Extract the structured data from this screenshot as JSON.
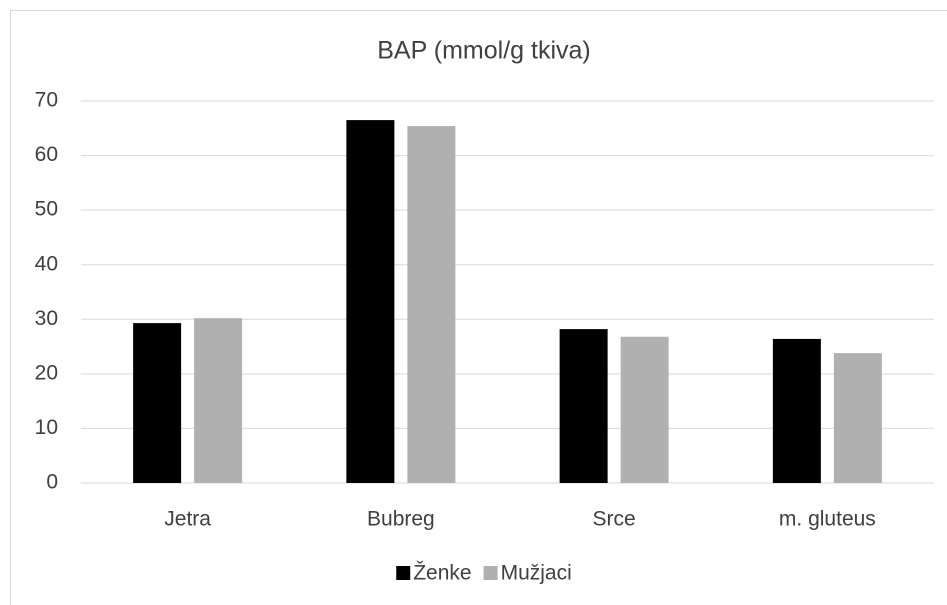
{
  "chart_data": {
    "type": "bar",
    "title": "BAP (mmol/g tkiva)",
    "categories": [
      "Jetra",
      "Bubreg",
      "Srce",
      "m. gluteus"
    ],
    "series": [
      {
        "name": "Ženke",
        "color": "#000000",
        "values": [
          29.3,
          66.5,
          28.2,
          26.4
        ]
      },
      {
        "name": "Mužjaci",
        "color": "#b0b0b0",
        "values": [
          30.2,
          65.4,
          26.8,
          23.8
        ]
      }
    ],
    "ylim": [
      0,
      70
    ],
    "yticks": [
      0,
      10,
      20,
      30,
      40,
      50,
      60,
      70
    ],
    "grid": true,
    "legend": "bottom"
  }
}
